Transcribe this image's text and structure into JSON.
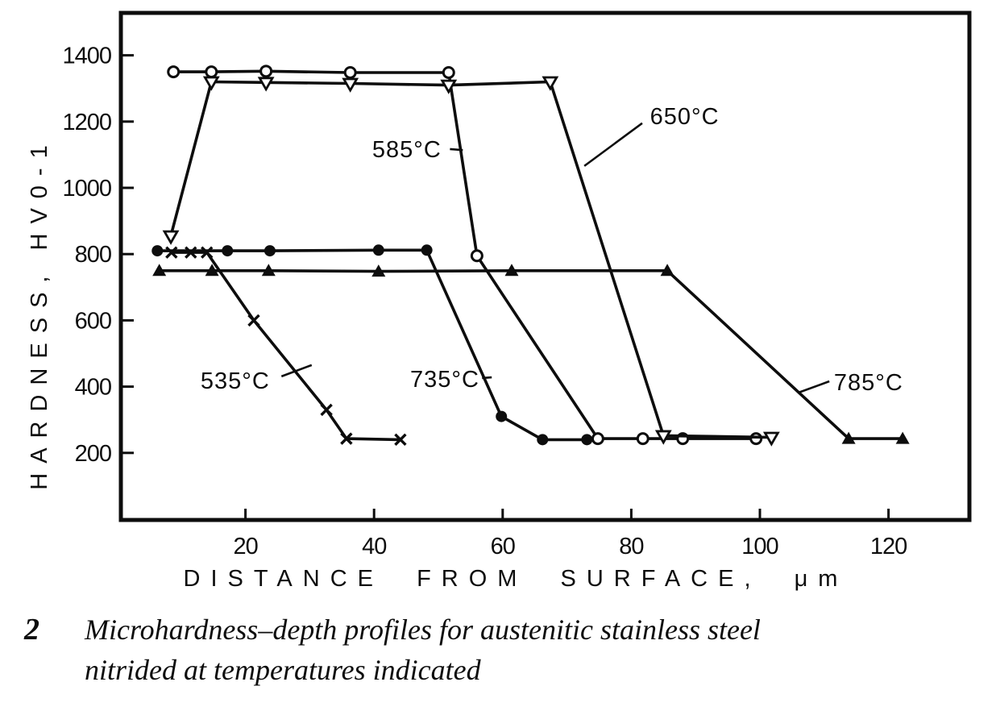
{
  "figure": {
    "caption_number": "2",
    "caption_line1": "Microhardness–depth profiles for austenitic stainless steel",
    "caption_line2": "nitrided at temperatures indicated"
  },
  "colors": {
    "ink": "#0d0d0d",
    "paper": "#ffffff"
  },
  "chart_data": {
    "type": "line",
    "title": "",
    "xlabel": "DISTANCE FROM SURFACE, μm",
    "ylabel": "HARDNESS, HV0-1",
    "xlim": [
      0,
      132.6
    ],
    "ylim": [
      0,
      1530
    ],
    "x_ticks": [
      20,
      40,
      60,
      80,
      100,
      120
    ],
    "y_ticks": [
      200,
      400,
      600,
      800,
      1000,
      1200,
      1400
    ],
    "grid": false,
    "legend_position": "inline-annotations",
    "series": [
      {
        "name": "535°C",
        "marker": "x-cross",
        "points": [
          [
            8.5,
            805
          ],
          [
            11.5,
            805
          ],
          [
            14,
            805
          ],
          [
            21.3,
            600
          ],
          [
            32.6,
            330
          ],
          [
            35.7,
            243
          ],
          [
            44.1,
            240
          ]
        ]
      },
      {
        "name": "585°C",
        "marker": "circle-open",
        "points": [
          [
            8.8,
            1350
          ],
          [
            14.7,
            1350
          ],
          [
            23.2,
            1352
          ],
          [
            36.3,
            1348
          ],
          [
            51.6,
            1348
          ],
          [
            56,
            795
          ],
          [
            74.8,
            243
          ],
          [
            81.8,
            243
          ],
          [
            88,
            243
          ],
          [
            99.4,
            243
          ]
        ]
      },
      {
        "name": "650°C",
        "marker": "triangle-down-open",
        "points": [
          [
            8.4,
            855
          ],
          [
            14.7,
            1320
          ],
          [
            23.2,
            1318
          ],
          [
            36.3,
            1315
          ],
          [
            51.6,
            1310
          ],
          [
            67.4,
            1320
          ],
          [
            85,
            252
          ],
          [
            101.8,
            247
          ]
        ]
      },
      {
        "name": "735°C",
        "marker": "circle-filled",
        "points": [
          [
            6.3,
            810
          ],
          [
            17.2,
            810
          ],
          [
            23.8,
            810
          ],
          [
            40.7,
            812
          ],
          [
            48.2,
            812
          ],
          [
            59.8,
            310
          ],
          [
            66.2,
            240
          ],
          [
            73.1,
            240
          ]
        ]
      },
      {
        "name": "785°C",
        "marker": "triangle-up-filled",
        "points": [
          [
            6.6,
            750
          ],
          [
            14.8,
            750
          ],
          [
            23.6,
            750
          ],
          [
            40.7,
            748
          ],
          [
            61.4,
            750
          ],
          [
            85.6,
            750
          ],
          [
            113.8,
            243
          ],
          [
            122.2,
            243
          ]
        ]
      }
    ],
    "annotations": [
      {
        "label": "535°C",
        "tx": 18.4,
        "ty": 418,
        "leader": [
          [
            25.6,
            431
          ],
          [
            30.3,
            465
          ]
        ]
      },
      {
        "label": "585°C",
        "tx": 45.1,
        "ty": 1117,
        "leader": [
          [
            51.8,
            1117
          ],
          [
            53.8,
            1114
          ]
        ]
      },
      {
        "label": "650°C",
        "tx": 88.3,
        "ty": 1216,
        "leader": [
          [
            81.7,
            1195
          ],
          [
            72.7,
            1066
          ]
        ]
      },
      {
        "label": "735°C",
        "tx": 51.0,
        "ty": 423,
        "leader": [
          [
            56.8,
            426
          ],
          [
            58.3,
            428
          ]
        ]
      },
      {
        "label": "785°C",
        "tx": 116.9,
        "ty": 414,
        "leader": [
          [
            110.8,
            416
          ],
          [
            106.0,
            382
          ]
        ]
      }
    ]
  }
}
